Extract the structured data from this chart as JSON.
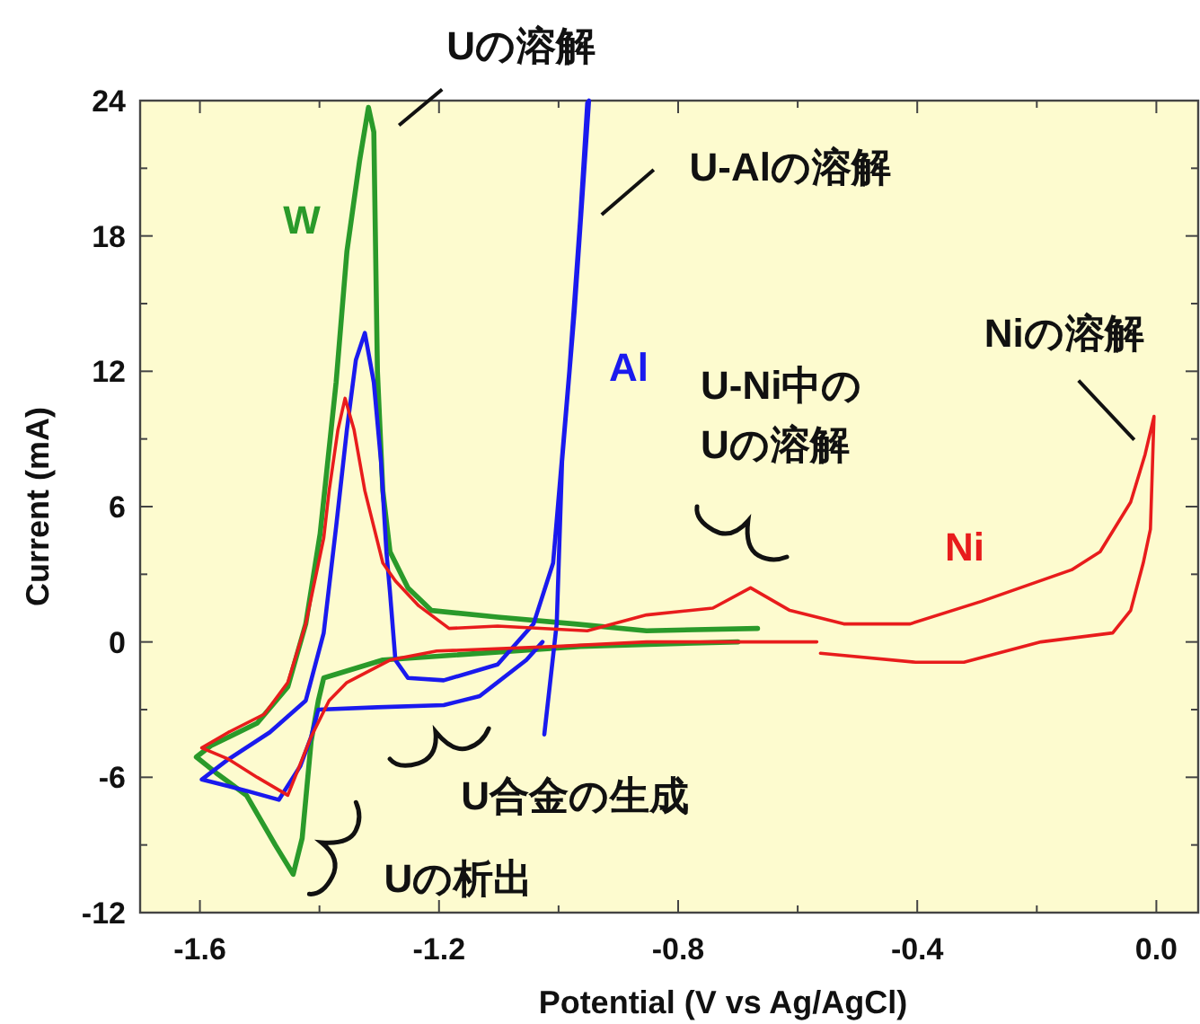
{
  "chart_data": {
    "type": "line",
    "xlabel": "Potential (V vs Ag/AgCl)",
    "ylabel": "Current (mA)",
    "xlim": [
      -1.7,
      0.07
    ],
    "ylim": [
      -12,
      24
    ],
    "xticks": [
      -1.6,
      -1.2,
      -0.8,
      -0.4,
      {
        "value": 0,
        "label": "0.0"
      }
    ],
    "yticks": [
      -12,
      -6,
      0,
      6,
      12,
      18,
      24
    ],
    "grid": false,
    "legend": false,
    "marker": "none",
    "line_style": "solid",
    "series": [
      {
        "name": "W",
        "color": "#2a9a2a",
        "x": [
          -0.7,
          -0.964,
          -1.294,
          -1.393,
          -1.402,
          -1.414,
          -1.429,
          -1.444,
          -1.474,
          -1.522,
          -1.573,
          -1.606,
          -1.582,
          -1.504,
          -1.453,
          -1.423,
          -1.399,
          -1.372,
          -1.354,
          -1.333,
          -1.318,
          -1.309,
          -1.303,
          -1.294,
          -1.282,
          -1.252,
          -1.213,
          -1.102,
          -0.973,
          -0.853,
          -0.667
        ],
        "values": [
          0.0,
          -0.2,
          -0.8,
          -1.6,
          -2.6,
          -4.4,
          -8.7,
          -10.3,
          -9.0,
          -6.8,
          -5.8,
          -5.1,
          -4.6,
          -3.6,
          -2.0,
          0.8,
          4.8,
          11.5,
          17.3,
          21.3,
          23.7,
          22.6,
          12.0,
          6.7,
          4.0,
          2.4,
          1.4,
          1.1,
          0.8,
          0.5,
          0.6
        ]
      },
      {
        "name": "Al",
        "color": "#1a1aee",
        "x": [
          -1.027,
          -1.054,
          -1.132,
          -1.192,
          -1.303,
          -1.402,
          -1.414,
          -1.432,
          -1.468,
          -1.522,
          -1.597,
          -1.552,
          -1.483,
          -1.423,
          -1.393,
          -1.372,
          -1.354,
          -1.339,
          -1.324,
          -1.309,
          -1.297,
          -1.288,
          -1.282,
          -1.273,
          -1.252,
          -1.192,
          -1.102,
          -1.042,
          -1.009,
          -0.982,
          -0.964,
          -0.952,
          -0.949,
          -0.973,
          -0.994,
          -1.003,
          -1.024
        ],
        "values": [
          0.0,
          -0.8,
          -2.4,
          -2.8,
          -2.9,
          -3.0,
          -4.2,
          -5.5,
          -7.0,
          -6.6,
          -6.1,
          -5.2,
          -4.0,
          -2.6,
          0.4,
          5.1,
          9.4,
          12.5,
          13.7,
          11.5,
          8.0,
          4.0,
          2.2,
          -0.8,
          -1.6,
          -1.7,
          -1.0,
          0.8,
          3.5,
          12.0,
          18.7,
          23.9,
          24.0,
          14.7,
          8.0,
          0.8,
          -4.1
        ]
      },
      {
        "name": "Ni",
        "color": "#e81c1c",
        "x": [
          -0.568,
          -0.853,
          -1.003,
          -1.204,
          -1.282,
          -1.354,
          -1.384,
          -1.414,
          -1.453,
          -1.504,
          -1.552,
          -1.597,
          -1.552,
          -1.492,
          -1.453,
          -1.423,
          -1.393,
          -1.384,
          -1.369,
          -1.357,
          -1.342,
          -1.324,
          -1.294,
          -1.273,
          -1.234,
          -1.183,
          -1.102,
          -0.952,
          -0.853,
          -0.742,
          -0.679,
          -0.613,
          -0.523,
          -0.412,
          -0.292,
          -0.142,
          -0.094,
          -0.043,
          -0.019,
          -0.004,
          -0.01,
          -0.022,
          -0.043,
          -0.073,
          -0.193,
          -0.322,
          -0.403,
          -0.562
        ],
        "values": [
          0.0,
          0.0,
          -0.2,
          -0.4,
          -0.8,
          -1.8,
          -2.6,
          -4.2,
          -6.8,
          -6.0,
          -5.2,
          -4.7,
          -4.0,
          -3.2,
          -1.8,
          0.8,
          4.6,
          6.7,
          9.4,
          10.8,
          9.4,
          6.7,
          3.5,
          2.7,
          1.6,
          0.6,
          0.7,
          0.5,
          1.2,
          1.5,
          2.4,
          1.4,
          0.8,
          0.8,
          1.8,
          3.2,
          4.0,
          6.2,
          8.3,
          10.0,
          5.0,
          3.5,
          1.4,
          0.4,
          0.0,
          -0.9,
          -0.9,
          -0.5
        ]
      }
    ],
    "annotations": [
      {
        "text": "Uの溶解",
        "x": -1.318,
        "y": 23.7
      },
      {
        "text": "U-Alの溶解",
        "x": -0.964,
        "y": 18.7
      },
      {
        "text": "Niの溶解",
        "x": -0.004,
        "y": 10.0
      },
      "U-Ni中の\nUの溶解",
      {
        "text": "U合金の生成",
        "x": -1.192,
        "y": -2.8
      },
      {
        "text": "Uの析出",
        "x": -1.444,
        "y": -10.3
      }
    ]
  }
}
